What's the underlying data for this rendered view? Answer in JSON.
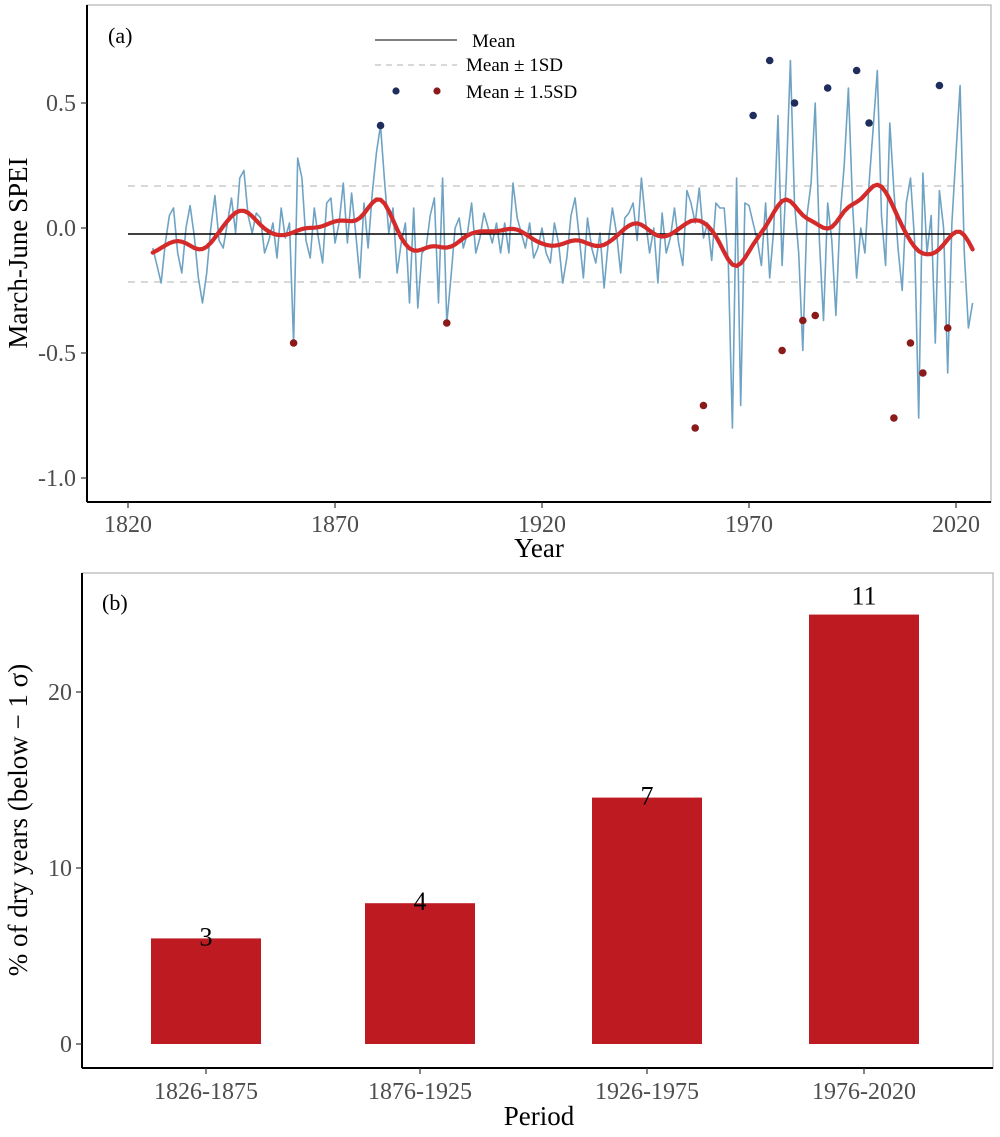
{
  "chart_data": [
    {
      "type": "line",
      "panel_label": "(a)",
      "xlabel": "Year",
      "ylabel": "March-June SPEI",
      "xlim": [
        1815,
        2028
      ],
      "ylim": [
        -1.1,
        0.8
      ],
      "xticks": [
        1820,
        1870,
        1920,
        1970,
        2020
      ],
      "xtick_labels": [
        "1820",
        "1870",
        "1920",
        "1970",
        "2020"
      ],
      "yticks": [
        0.5,
        0.0,
        -0.5,
        -1.0
      ],
      "ytick_labels": [
        "0.5",
        "0.0",
        "-0.5",
        "-1.0"
      ],
      "grid": false,
      "legend_position": "top-center",
      "legend": [
        {
          "label": "Mean",
          "style": "solid-line",
          "color": "#000000"
        },
        {
          "label": "Mean ± 1SD",
          "style": "dashed-line",
          "color": "#cccccc"
        },
        {
          "label": "Mean ± 1.5SD",
          "style": "points",
          "colors": [
            "#1f2d5c",
            "#8b1a1a"
          ]
        }
      ],
      "mean": -0.024,
      "sd_upper": 0.168,
      "sd_lower": -0.216,
      "start_year": 1826,
      "series": [
        {
          "name": "SPEI",
          "color": "#6fa3c4",
          "values": [
            -0.08,
            -0.15,
            -0.22,
            -0.06,
            0.05,
            0.08,
            -0.1,
            -0.18,
            0.0,
            0.09,
            -0.03,
            -0.2,
            -0.3,
            -0.18,
            0.0,
            0.13,
            -0.05,
            -0.08,
            0.02,
            0.12,
            -0.02,
            0.2,
            0.23,
            0.05,
            -0.02,
            0.06,
            0.04,
            -0.1,
            -0.05,
            0.02,
            -0.12,
            0.08,
            -0.04,
            0.02,
            -0.46,
            0.28,
            0.2,
            -0.05,
            -0.12,
            0.08,
            -0.04,
            -0.14,
            0.1,
            0.12,
            -0.06,
            0.02,
            0.18,
            -0.06,
            0.14,
            -0.02,
            -0.2,
            0.1,
            -0.08,
            0.14,
            0.3,
            0.41,
            0.18,
            -0.02,
            0.08,
            -0.18,
            -0.06,
            0.02,
            -0.3,
            0.08,
            -0.32,
            -0.1,
            -0.08,
            0.05,
            0.12,
            -0.3,
            0.2,
            -0.38,
            -0.2,
            0.0,
            0.04,
            -0.08,
            -0.02,
            0.1,
            -0.1,
            -0.04,
            0.06,
            0.0,
            -0.06,
            0.02,
            -0.1,
            0.02,
            -0.1,
            0.18,
            0.04,
            -0.02,
            -0.08,
            0.02,
            -0.12,
            -0.08,
            0.0,
            -0.1,
            -0.14,
            0.02,
            -0.06,
            -0.22,
            -0.12,
            0.05,
            0.12,
            -0.04,
            -0.2,
            0.04,
            -0.08,
            -0.14,
            -0.02,
            -0.24,
            -0.06,
            0.08,
            -0.02,
            -0.18,
            0.04,
            0.06,
            0.1,
            -0.05,
            0.2,
            0.03,
            -0.1,
            0.0,
            -0.22,
            0.06,
            -0.1,
            -0.04,
            0.08,
            -0.06,
            -0.15,
            0.15,
            0.1,
            0.02,
            0.16,
            -0.04,
            0.02,
            -0.13,
            0.1,
            0.08,
            0.08,
            -0.14,
            -0.8,
            0.2,
            -0.71,
            0.1,
            0.09,
            0.02,
            -0.05,
            -0.15,
            0.1,
            -0.2,
            0.0,
            0.45,
            -0.15,
            0.2,
            0.67,
            0.1,
            -0.1,
            -0.49,
            0.05,
            0.18,
            0.5,
            -0.05,
            -0.37,
            0.1,
            -0.05,
            -0.35,
            0.05,
            0.25,
            0.56,
            0.1,
            -0.2,
            0.0,
            -0.1,
            0.18,
            0.4,
            0.63,
            0.05,
            -0.15,
            0.42,
            0.15,
            -0.08,
            -0.25,
            0.1,
            0.2,
            -0.05,
            -0.76,
            0.22,
            -0.1,
            0.05,
            -0.46,
            0.15,
            0.0,
            -0.58,
            0.02,
            0.3,
            0.57,
            -0.1,
            -0.4,
            -0.3
          ]
        }
      ],
      "smooth": {
        "name": "Smoothed SPEI",
        "color": "#d42a2a",
        "window_years": 9
      },
      "highlight_high": [
        {
          "year": 1881,
          "value": 0.41
        },
        {
          "year": 1971,
          "value": 0.45
        },
        {
          "year": 1975,
          "value": 0.67
        },
        {
          "year": 1981,
          "value": 0.5
        },
        {
          "year": 1989,
          "value": 0.56
        },
        {
          "year": 1996,
          "value": 0.63
        },
        {
          "year": 1999,
          "value": 0.42
        },
        {
          "year": 2016,
          "value": 0.57
        }
      ],
      "highlight_low": [
        {
          "year": 1860,
          "value": -0.46
        },
        {
          "year": 1897,
          "value": -0.38
        },
        {
          "year": 1957,
          "value": -0.8
        },
        {
          "year": 1959,
          "value": -0.71
        },
        {
          "year": 1978,
          "value": -0.49
        },
        {
          "year": 1983,
          "value": -0.37
        },
        {
          "year": 1986,
          "value": -0.35
        },
        {
          "year": 2005,
          "value": -0.76
        },
        {
          "year": 2009,
          "value": -0.46
        },
        {
          "year": 2012,
          "value": -0.58
        },
        {
          "year": 2018,
          "value": -0.4
        }
      ]
    },
    {
      "type": "bar",
      "panel_label": "(b)",
      "xlabel": "Period",
      "ylabel": "% of dry years (below − 1 σ)",
      "categories": [
        "1826-1875",
        "1876-1925",
        "1926-1975",
        "1976-2020"
      ],
      "values": [
        6.0,
        8.0,
        14.0,
        24.4
      ],
      "data_labels": [
        "3",
        "4",
        "7",
        "11"
      ],
      "ylim": [
        -1.9,
        27.0
      ],
      "yticks": [
        0,
        10,
        20
      ],
      "ytick_labels": [
        "0",
        "10",
        "20"
      ],
      "bar_color": "#be1a22",
      "grid": false
    }
  ]
}
